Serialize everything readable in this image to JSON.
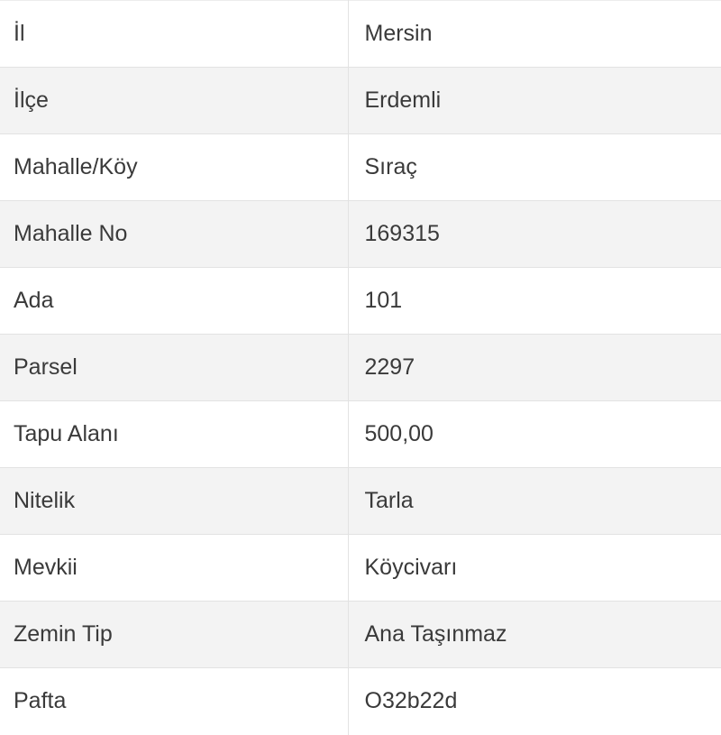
{
  "rows": [
    {
      "label": "İl",
      "value": "Mersin"
    },
    {
      "label": "İlçe",
      "value": "Erdemli"
    },
    {
      "label": "Mahalle/Köy",
      "value": "Sıraç"
    },
    {
      "label": "Mahalle No",
      "value": "169315"
    },
    {
      "label": "Ada",
      "value": "101"
    },
    {
      "label": "Parsel",
      "value": "2297"
    },
    {
      "label": "Tapu Alanı",
      "value": "500,00"
    },
    {
      "label": "Nitelik",
      "value": "Tarla"
    },
    {
      "label": "Mevkii",
      "value": "Köycivarı"
    },
    {
      "label": "Zemin Tip",
      "value": "Ana Taşınmaz"
    },
    {
      "label": "Pafta",
      "value": "O32b22d"
    }
  ]
}
